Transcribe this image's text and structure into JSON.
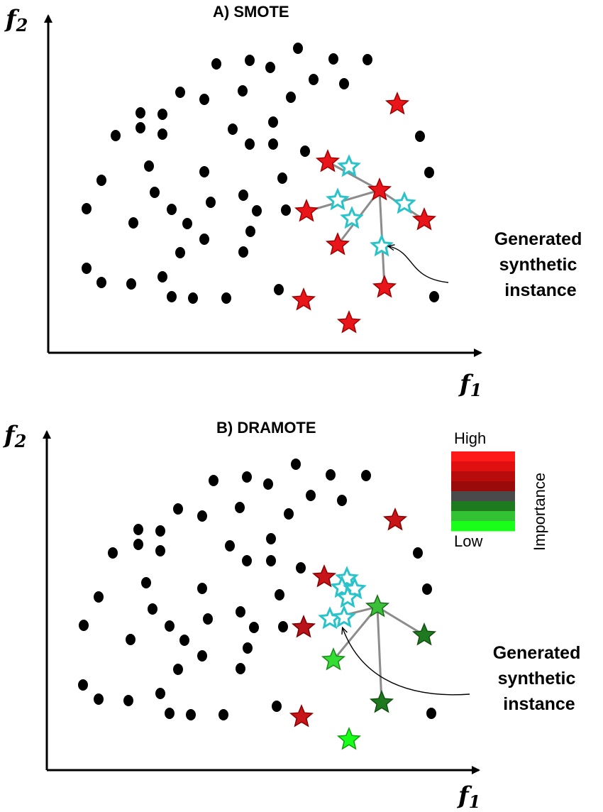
{
  "panels": [
    {
      "id": "smote",
      "title": "A) SMOTE",
      "y_axis_label": {
        "letter": "f",
        "subscript": "2"
      },
      "x_axis_label": {
        "letter": "f",
        "subscript": "1"
      },
      "annotation": [
        "Generated",
        "synthetic",
        "instance"
      ]
    },
    {
      "id": "dramote",
      "title": "B) DRAMOTE",
      "y_axis_label": {
        "letter": "f",
        "subscript": "2"
      },
      "x_axis_label": {
        "letter": "f",
        "subscript": "1"
      },
      "annotation": [
        "Generated",
        "synthetic",
        "instance"
      ]
    }
  ],
  "legend": {
    "high_label": "High",
    "low_label": "Low",
    "title": "Importance",
    "color_steps": [
      "#ff1a1a",
      "#e01010",
      "#b80c0c",
      "#9a0a0a",
      "#4a4a4a",
      "#1e7a1e",
      "#33c233",
      "#1aff1a"
    ]
  },
  "colors": {
    "majority_point": "#000000",
    "minority_star": "#e8161b",
    "synthetic_star": "#29c3c9",
    "connector": "#8c8c8c"
  }
}
